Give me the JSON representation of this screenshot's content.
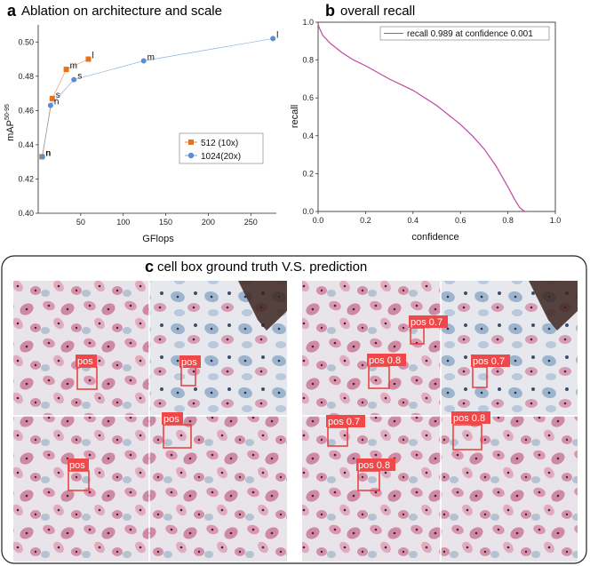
{
  "chart_data": [
    {
      "panel": "a",
      "type": "line",
      "title": "Ablation on architecture and scale",
      "xlabel": "GFlops",
      "ylabel": "mAP",
      "ylabel_sup": "50-95",
      "xlim": [
        0,
        280
      ],
      "ylim": [
        0.4,
        0.51
      ],
      "xticks": [
        50,
        100,
        150,
        200,
        250
      ],
      "yticks": [
        0.4,
        0.42,
        0.44,
        0.46,
        0.48,
        0.5
      ],
      "series": [
        {
          "name": "512 (10x)",
          "color": "#e8711c",
          "marker": "square",
          "points": [
            {
              "label": "n",
              "x": 4.5,
              "y": 0.433
            },
            {
              "label": "s",
              "x": 16.5,
              "y": 0.467
            },
            {
              "label": "m",
              "x": 33,
              "y": 0.484
            },
            {
              "label": "l",
              "x": 59,
              "y": 0.49
            }
          ]
        },
        {
          "name": "1024(20x)",
          "color": "#5b8ed0",
          "marker": "circle",
          "points": [
            {
              "label": "n",
              "x": 5,
              "y": 0.433
            },
            {
              "label": "n",
              "x": 14.5,
              "y": 0.463
            },
            {
              "label": "s",
              "x": 42,
              "y": 0.478
            },
            {
              "label": "m",
              "x": 124,
              "y": 0.489
            },
            {
              "label": "l",
              "x": 276,
              "y": 0.502
            }
          ]
        }
      ]
    },
    {
      "panel": "b",
      "type": "line",
      "title": "overall recall",
      "xlabel": "confidence",
      "ylabel": "recall",
      "xlim": [
        0,
        1.0
      ],
      "ylim": [
        0,
        1.0
      ],
      "xticks": [
        "0.0",
        "0.2",
        "0.4",
        "0.6",
        "0.8",
        "1.0"
      ],
      "yticks": [
        "0.0",
        "0.2",
        "0.4",
        "0.6",
        "0.8",
        "1.0"
      ],
      "series": [
        {
          "name": "recall 0.989 at confidence 0.001",
          "color": "#c2479e",
          "x": [
            0.0,
            0.005,
            0.02,
            0.05,
            0.1,
            0.15,
            0.2,
            0.3,
            0.4,
            0.5,
            0.6,
            0.65,
            0.7,
            0.75,
            0.8,
            0.83,
            0.85,
            0.87,
            0.88
          ],
          "y": [
            0.99,
            0.97,
            0.93,
            0.89,
            0.84,
            0.8,
            0.77,
            0.7,
            0.64,
            0.56,
            0.46,
            0.4,
            0.33,
            0.24,
            0.13,
            0.06,
            0.02,
            0.0,
            0.0
          ]
        }
      ]
    }
  ],
  "panel_c": {
    "letter": "c",
    "title": "cell box ground truth V.S. prediction",
    "ground_truth_labels": [
      "pos",
      "pos",
      "pos",
      "pos"
    ],
    "prediction_labels": [
      "pos 0.7",
      "pos 0.8",
      "pos 0.7",
      "pos 0.7",
      "pos 0.8",
      "pos 0.8"
    ]
  }
}
